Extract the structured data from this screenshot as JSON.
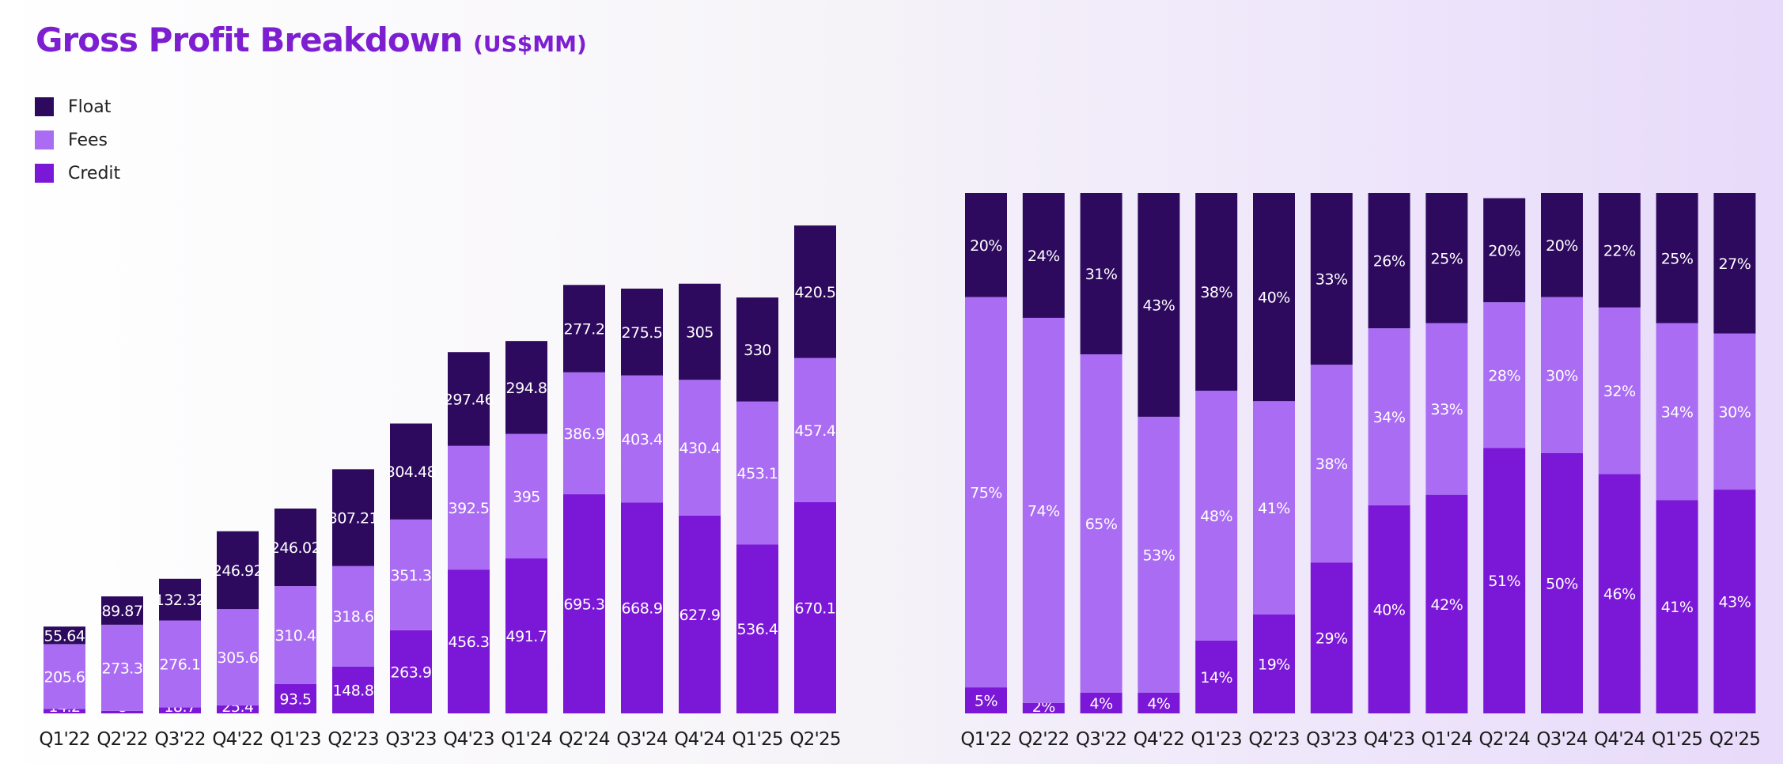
{
  "title": "Gross Profit Breakdown",
  "title_unit": "(US$MM)",
  "colors": {
    "float": "#2d0a5e",
    "fees": "#a96cf3",
    "credit": "#7b17d6",
    "title": "#7d1fd1"
  },
  "legend": [
    {
      "key": "float",
      "label": "Float",
      "color": "#2d0a5e"
    },
    {
      "key": "fees",
      "label": "Fees",
      "color": "#a96cf3"
    },
    {
      "key": "credit",
      "label": "Credit",
      "color": "#7b17d6"
    }
  ],
  "chart_data": [
    {
      "type": "bar",
      "stacked": true,
      "title": "Gross Profit Breakdown (US$MM)",
      "categories": [
        "Q1'22",
        "Q2'22",
        "Q3'22",
        "Q4'22",
        "Q1'23",
        "Q2'23",
        "Q3'23",
        "Q4'23",
        "Q1'24",
        "Q2'24",
        "Q3'24",
        "Q4'24",
        "Q1'25",
        "Q2'25"
      ],
      "series": [
        {
          "name": "Credit",
          "values": [
            14.2,
            8,
            18.7,
            25.4,
            93.5,
            148.8,
            263.9,
            456.3,
            491.7,
            695.3,
            668.9,
            627.9,
            536.4,
            670.1
          ]
        },
        {
          "name": "Fees",
          "values": [
            205.6,
            273.3,
            276.1,
            305.6,
            310.4,
            318.6,
            351.3,
            392.5,
            395,
            386.9,
            403.4,
            430.4,
            453.1,
            457.4
          ]
        },
        {
          "name": "Float",
          "values": [
            55.64,
            89.87,
            132.32,
            246.92,
            246.02,
            307.21,
            304.48,
            297.46,
            294.8,
            277.2,
            275.5,
            305,
            330,
            420.5
          ]
        }
      ],
      "labels": {
        "Credit": [
          "14.2",
          "8",
          "18.7",
          "25.4",
          "93.5",
          "148.8",
          "263.9",
          "456.3",
          "491.7",
          "695.3",
          "668.9",
          "627.9",
          "536.4",
          "670.1"
        ],
        "Fees": [
          "205.6",
          "273.3",
          "276.1",
          "305.6",
          "310.4",
          "318.6",
          "351.3",
          "392.5",
          "395",
          "386.9",
          "403.4",
          "430.4",
          "453.1",
          "457.4"
        ],
        "Float": [
          "55.64",
          "89.87",
          "132.32",
          "246.92",
          "246.02",
          "307.21",
          "304.48",
          "297.46",
          "294.8",
          "277.2",
          "275.5",
          "305",
          "330",
          "420.5"
        ]
      },
      "grid": false,
      "legend": "top-left"
    },
    {
      "type": "bar",
      "stacked": true,
      "percent": true,
      "categories": [
        "Q1'22",
        "Q2'22",
        "Q3'22",
        "Q4'22",
        "Q1'23",
        "Q2'23",
        "Q3'23",
        "Q4'23",
        "Q1'24",
        "Q2'24",
        "Q3'24",
        "Q4'24",
        "Q1'25",
        "Q2'25"
      ],
      "series": [
        {
          "name": "Credit",
          "values": [
            5,
            2,
            4,
            4,
            14,
            19,
            29,
            40,
            42,
            51,
            50,
            46,
            41,
            43
          ]
        },
        {
          "name": "Fees",
          "values": [
            75,
            74,
            65,
            53,
            48,
            41,
            38,
            34,
            33,
            28,
            30,
            32,
            34,
            30
          ]
        },
        {
          "name": "Float",
          "values": [
            20,
            24,
            31,
            43,
            38,
            40,
            33,
            26,
            25,
            20,
            20,
            22,
            25,
            27
          ]
        }
      ],
      "labels": {
        "Credit": [
          "5%",
          "2%",
          "4%",
          "4%",
          "14%",
          "19%",
          "29%",
          "40%",
          "42%",
          "51%",
          "50%",
          "46%",
          "41%",
          "43%"
        ],
        "Fees": [
          "75%",
          "74%",
          "65%",
          "53%",
          "48%",
          "41%",
          "38%",
          "34%",
          "33%",
          "28%",
          "30%",
          "32%",
          "34%",
          "30%"
        ],
        "Float": [
          "20%",
          "24%",
          "31%",
          "43%",
          "38%",
          "40%",
          "33%",
          "26%",
          "25%",
          "20%",
          "20%",
          "22%",
          "25%",
          "27%"
        ]
      },
      "ylim": [
        0,
        100
      ],
      "grid": false
    }
  ]
}
